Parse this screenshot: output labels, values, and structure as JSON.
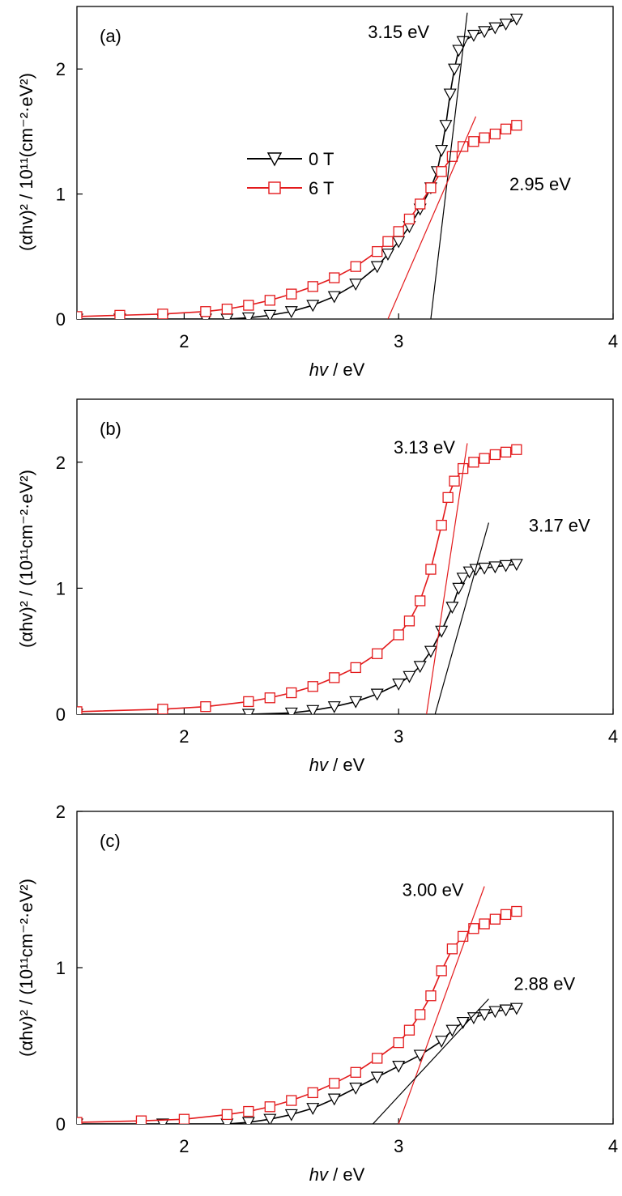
{
  "chart_data": [
    {
      "type": "scatter",
      "panel_label": "(a)",
      "xlabel_italic": "hv",
      "xlabel_rest": " / eV",
      "ylabel": "(αhv)² / 10¹¹(cm⁻²·eV²)",
      "xlim": [
        1.5,
        4
      ],
      "ylim": [
        0,
        2.5
      ],
      "xticks": [
        2,
        3,
        4
      ],
      "yticks": [
        0,
        1,
        2
      ],
      "grid": false,
      "legend": {
        "placement": "upper-left-center",
        "entries": [
          {
            "name": "0 T",
            "color": "#000000",
            "marker": "triangle-down"
          },
          {
            "name": "6 T",
            "color": "#e31a1c",
            "marker": "square"
          }
        ]
      },
      "series": [
        {
          "name": "0 T",
          "color": "#000000",
          "marker": "triangle-down",
          "x": [
            1.5,
            1.7,
            1.9,
            2.1,
            2.2,
            2.3,
            2.4,
            2.5,
            2.6,
            2.7,
            2.8,
            2.9,
            2.95,
            3.0,
            3.05,
            3.1,
            3.15,
            3.18,
            3.2,
            3.22,
            3.24,
            3.26,
            3.28,
            3.3,
            3.35,
            3.4,
            3.45,
            3.5,
            3.55
          ],
          "y": [
            0,
            0,
            0,
            0,
            0,
            0.01,
            0.03,
            0.06,
            0.11,
            0.18,
            0.28,
            0.42,
            0.52,
            0.62,
            0.74,
            0.88,
            1.05,
            1.18,
            1.35,
            1.55,
            1.8,
            2.0,
            2.15,
            2.22,
            2.27,
            2.3,
            2.33,
            2.36,
            2.4
          ]
        },
        {
          "name": "6 T",
          "color": "#e31a1c",
          "marker": "square",
          "x": [
            1.5,
            1.7,
            1.9,
            2.1,
            2.2,
            2.3,
            2.4,
            2.5,
            2.6,
            2.7,
            2.8,
            2.9,
            2.95,
            3.0,
            3.05,
            3.1,
            3.15,
            3.2,
            3.25,
            3.3,
            3.35,
            3.4,
            3.45,
            3.5,
            3.55
          ],
          "y": [
            0.02,
            0.03,
            0.04,
            0.06,
            0.08,
            0.11,
            0.15,
            0.2,
            0.26,
            0.33,
            0.42,
            0.54,
            0.62,
            0.7,
            0.8,
            0.92,
            1.05,
            1.18,
            1.3,
            1.38,
            1.42,
            1.45,
            1.48,
            1.52,
            1.55
          ]
        }
      ],
      "fit_lines": [
        {
          "color": "#000000",
          "x0": 3.15,
          "y0": 0,
          "x1": 3.32,
          "y1": 2.45
        },
        {
          "color": "#e31a1c",
          "x0": 2.95,
          "y0": 0,
          "x1": 3.36,
          "y1": 1.62
        }
      ],
      "annotations": [
        {
          "text": "3.15 eV",
          "x": 3.0,
          "y": 2.3
        },
        {
          "text": "2.95 eV",
          "x": 3.66,
          "y": 1.08
        }
      ]
    },
    {
      "type": "scatter",
      "panel_label": "(b)",
      "xlabel_italic": "hv",
      "xlabel_rest": " / eV",
      "ylabel": "(αhv)² / (10¹¹cm⁻²·eV²)",
      "xlim": [
        1.5,
        4
      ],
      "ylim": [
        0,
        2.5
      ],
      "xticks": [
        2,
        3,
        4
      ],
      "yticks": [
        0,
        1,
        2
      ],
      "grid": false,
      "series": [
        {
          "name": "0 T",
          "color": "#000000",
          "marker": "triangle-down",
          "x": [
            1.5,
            1.9,
            2.3,
            2.5,
            2.6,
            2.7,
            2.8,
            2.9,
            3.0,
            3.05,
            3.1,
            3.15,
            3.2,
            3.25,
            3.28,
            3.3,
            3.33,
            3.36,
            3.4,
            3.45,
            3.5,
            3.55
          ],
          "y": [
            0,
            0,
            0,
            0.01,
            0.03,
            0.06,
            0.1,
            0.16,
            0.24,
            0.3,
            0.38,
            0.5,
            0.66,
            0.85,
            1.0,
            1.08,
            1.13,
            1.15,
            1.16,
            1.17,
            1.18,
            1.19
          ]
        },
        {
          "name": "6 T",
          "color": "#e31a1c",
          "marker": "square",
          "x": [
            1.5,
            1.9,
            2.1,
            2.3,
            2.4,
            2.5,
            2.6,
            2.7,
            2.8,
            2.9,
            3.0,
            3.05,
            3.1,
            3.15,
            3.2,
            3.23,
            3.26,
            3.3,
            3.35,
            3.4,
            3.45,
            3.5,
            3.55
          ],
          "y": [
            0.02,
            0.04,
            0.06,
            0.1,
            0.13,
            0.17,
            0.22,
            0.29,
            0.37,
            0.48,
            0.63,
            0.74,
            0.9,
            1.15,
            1.5,
            1.72,
            1.85,
            1.95,
            2.0,
            2.03,
            2.06,
            2.08,
            2.1
          ]
        }
      ],
      "fit_lines": [
        {
          "color": "#e31a1c",
          "x0": 3.13,
          "y0": 0,
          "x1": 3.32,
          "y1": 2.15
        },
        {
          "color": "#000000",
          "x0": 3.17,
          "y0": 0,
          "x1": 3.42,
          "y1": 1.52
        }
      ],
      "annotations": [
        {
          "text": "3.13 eV",
          "x": 3.12,
          "y": 2.12
        },
        {
          "text": "3.17 eV",
          "x": 3.75,
          "y": 1.5
        }
      ]
    },
    {
      "type": "scatter",
      "panel_label": "(c)",
      "xlabel_italic": "hv",
      "xlabel_rest": " / eV",
      "ylabel": "(αhv)² / (10¹¹cm⁻²·eV²)",
      "xlim": [
        1.5,
        4
      ],
      "ylim": [
        0,
        2
      ],
      "xticks": [
        2,
        3,
        4
      ],
      "yticks": [
        0,
        1,
        2
      ],
      "grid": false,
      "series": [
        {
          "name": "0 T",
          "color": "#000000",
          "marker": "triangle-down",
          "x": [
            1.5,
            1.9,
            2.2,
            2.3,
            2.4,
            2.5,
            2.6,
            2.7,
            2.8,
            2.9,
            3.0,
            3.1,
            3.2,
            3.25,
            3.3,
            3.35,
            3.4,
            3.45,
            3.5,
            3.55
          ],
          "y": [
            0,
            0,
            0,
            0.01,
            0.03,
            0.06,
            0.1,
            0.16,
            0.23,
            0.3,
            0.37,
            0.44,
            0.53,
            0.6,
            0.65,
            0.68,
            0.7,
            0.72,
            0.73,
            0.74
          ]
        },
        {
          "name": "6 T",
          "color": "#e31a1c",
          "marker": "square",
          "x": [
            1.5,
            1.8,
            2.0,
            2.2,
            2.3,
            2.4,
            2.5,
            2.6,
            2.7,
            2.8,
            2.9,
            3.0,
            3.05,
            3.1,
            3.15,
            3.2,
            3.25,
            3.3,
            3.35,
            3.4,
            3.45,
            3.5,
            3.55
          ],
          "y": [
            0.01,
            0.02,
            0.03,
            0.06,
            0.08,
            0.11,
            0.15,
            0.2,
            0.26,
            0.33,
            0.42,
            0.52,
            0.6,
            0.7,
            0.82,
            0.98,
            1.12,
            1.2,
            1.25,
            1.28,
            1.31,
            1.34,
            1.36
          ]
        }
      ],
      "fit_lines": [
        {
          "color": "#e31a1c",
          "x0": 3.0,
          "y0": 0,
          "x1": 3.4,
          "y1": 1.52
        },
        {
          "color": "#000000",
          "x0": 2.88,
          "y0": 0,
          "x1": 3.42,
          "y1": 0.8
        }
      ],
      "annotations": [
        {
          "text": "3.00 eV",
          "x": 3.16,
          "y": 1.5
        },
        {
          "text": "2.88 eV",
          "x": 3.68,
          "y": 0.9
        }
      ]
    }
  ]
}
